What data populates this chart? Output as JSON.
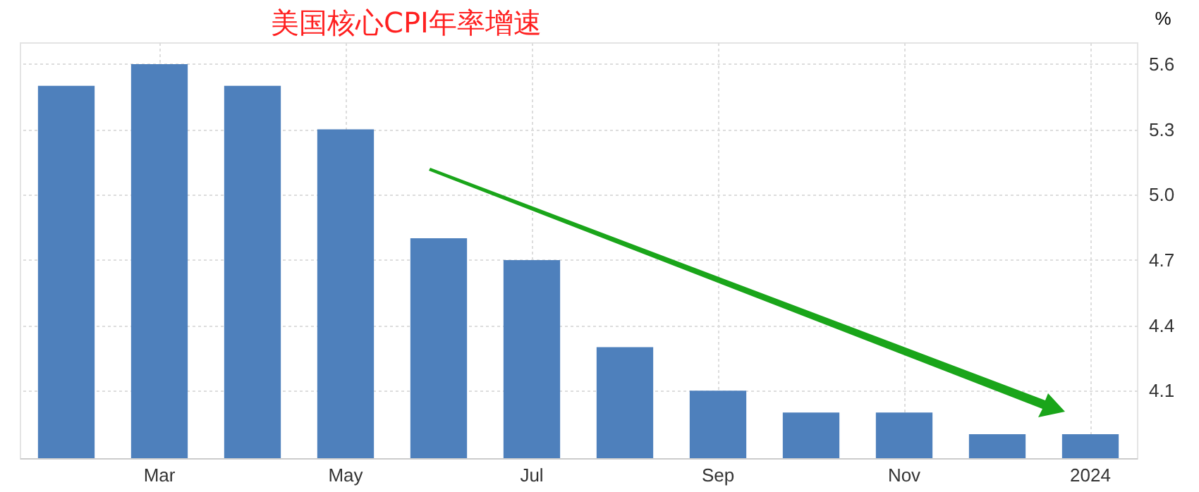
{
  "chart_data": {
    "type": "bar",
    "title": "美国核心CPI年率增速",
    "ylabel": "%",
    "categories": [
      null,
      "Mar",
      null,
      "May",
      null,
      "Jul",
      null,
      "Sep",
      null,
      "Nov",
      null,
      "2024"
    ],
    "values": [
      5.5,
      5.6,
      5.5,
      5.3,
      4.8,
      4.7,
      4.3,
      4.1,
      4.0,
      4.0,
      3.9,
      3.9
    ],
    "color": "#4e80bc",
    "ylim": [
      3.79,
      5.7
    ],
    "yticks": [
      4.1,
      4.4,
      4.7,
      {
        "value": 5.0,
        "label": "5.0"
      },
      5.3,
      5.6
    ],
    "grid": true
  }
}
